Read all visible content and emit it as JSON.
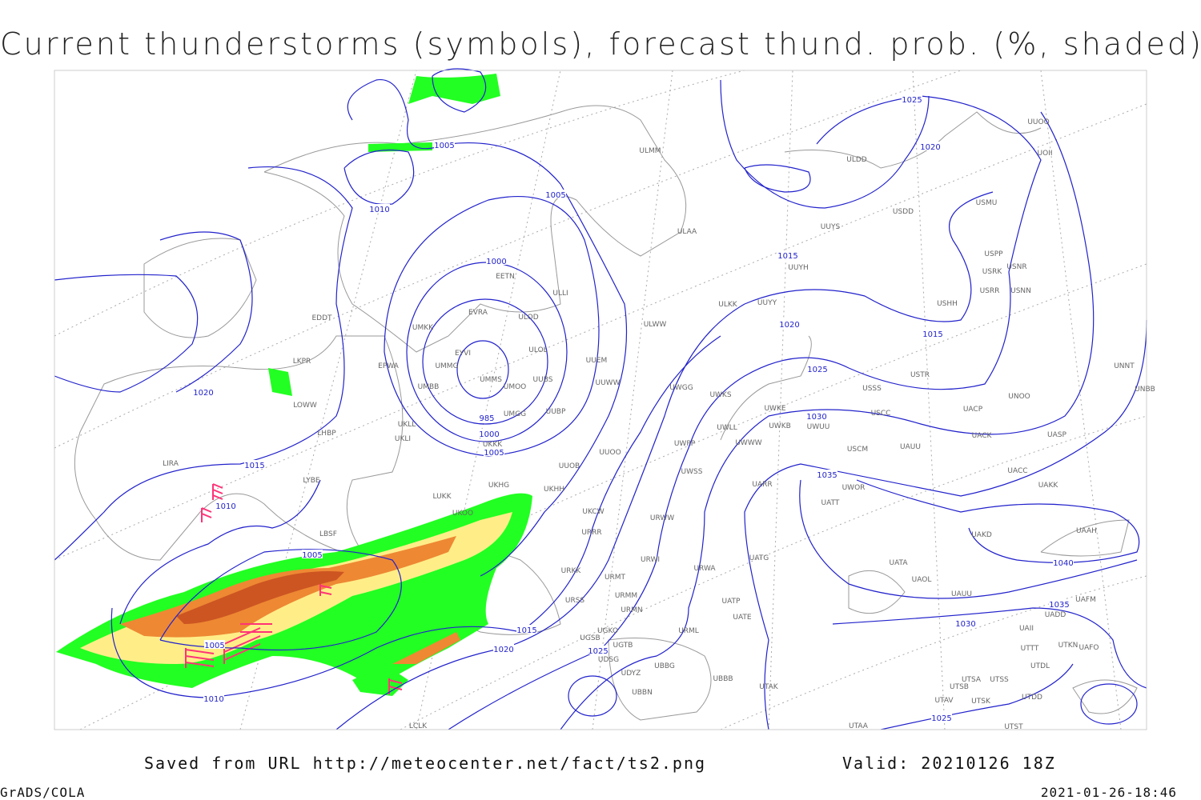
{
  "header": {
    "title": "Current thunderstorms (symbols), forecast thund. prob. (%, shaded)"
  },
  "footer": {
    "source": "Saved from URL http://meteocenter.net/fact/ts2.png",
    "valid": "Valid: 20210126 18Z",
    "credit": "GrADS/COLA",
    "timestamp": "2021-01-26-18:46"
  },
  "map": {
    "isobar_labels": [
      1025,
      1005,
      1020,
      1005,
      1010,
      1015,
      1000,
      1020,
      1015,
      1025,
      1020,
      985,
      1030,
      1000,
      1005,
      1015,
      1035,
      1010,
      1005,
      1040,
      1035,
      1030,
      1015,
      1005,
      1020,
      1025,
      1010,
      1025
    ],
    "stations": [
      "ULMM",
      "ULDD",
      "UUOO",
      "UOII",
      "USMU",
      "USDD",
      "UUYS",
      "ULAA",
      "USPP",
      "USRK",
      "USNR",
      "UUYH",
      "USRR",
      "USNN",
      "ULLI",
      "EETN",
      "EVRA",
      "ULOD",
      "ULKK",
      "UUYY",
      "USHH",
      "EDDT",
      "UMKK",
      "ULWW",
      "ULOL",
      "EYVI",
      "UUEM",
      "LKPR",
      "EPWA",
      "UMMG",
      "UMMS",
      "UUBS",
      "UMOO",
      "UUWW",
      "UMBB",
      "USTR",
      "UNNT",
      "UWGG",
      "UWKS",
      "USSS",
      "UNOO",
      "UNBB",
      "UWKE",
      "LOWW",
      "UUBP",
      "UMGG",
      "USCC",
      "UACP",
      "UWLL",
      "UWKB",
      "UWUU",
      "LHBP",
      "UKLL",
      "UKLI",
      "UKKK",
      "UACK",
      "UASP",
      "UWWW",
      "UWPP",
      "USCM",
      "UAUU",
      "LIRA",
      "UUOO",
      "UUOB",
      "UWSS",
      "UACC",
      "LYBE",
      "UKHH",
      "UWOR",
      "UAKK",
      "UARR",
      "LUKK",
      "UKHG",
      "UKOO",
      "UKCW",
      "URWW",
      "UATT",
      "URRR",
      "LBSF",
      "UAKD",
      "UAAH",
      "URWI",
      "UATG",
      "UATA",
      "URKK",
      "URMT",
      "URWA",
      "UAOL",
      "URSS",
      "URMM",
      "UATP",
      "UAUU",
      "UAFM",
      "URMN",
      "UATE",
      "UADD",
      "UGKO",
      "URML",
      "UAII",
      "UGSB",
      "UGTB",
      "UTTT",
      "UTKN",
      "UAFO",
      "UBBG",
      "UDSG",
      "UTDL",
      "UDYZ",
      "UBBB",
      "UTSA",
      "UTSS",
      "UTSB",
      "UTAK",
      "UBBN",
      "UTAV",
      "UTSK",
      "UTDD",
      "LCLK",
      "UTAA",
      "UTST"
    ]
  }
}
